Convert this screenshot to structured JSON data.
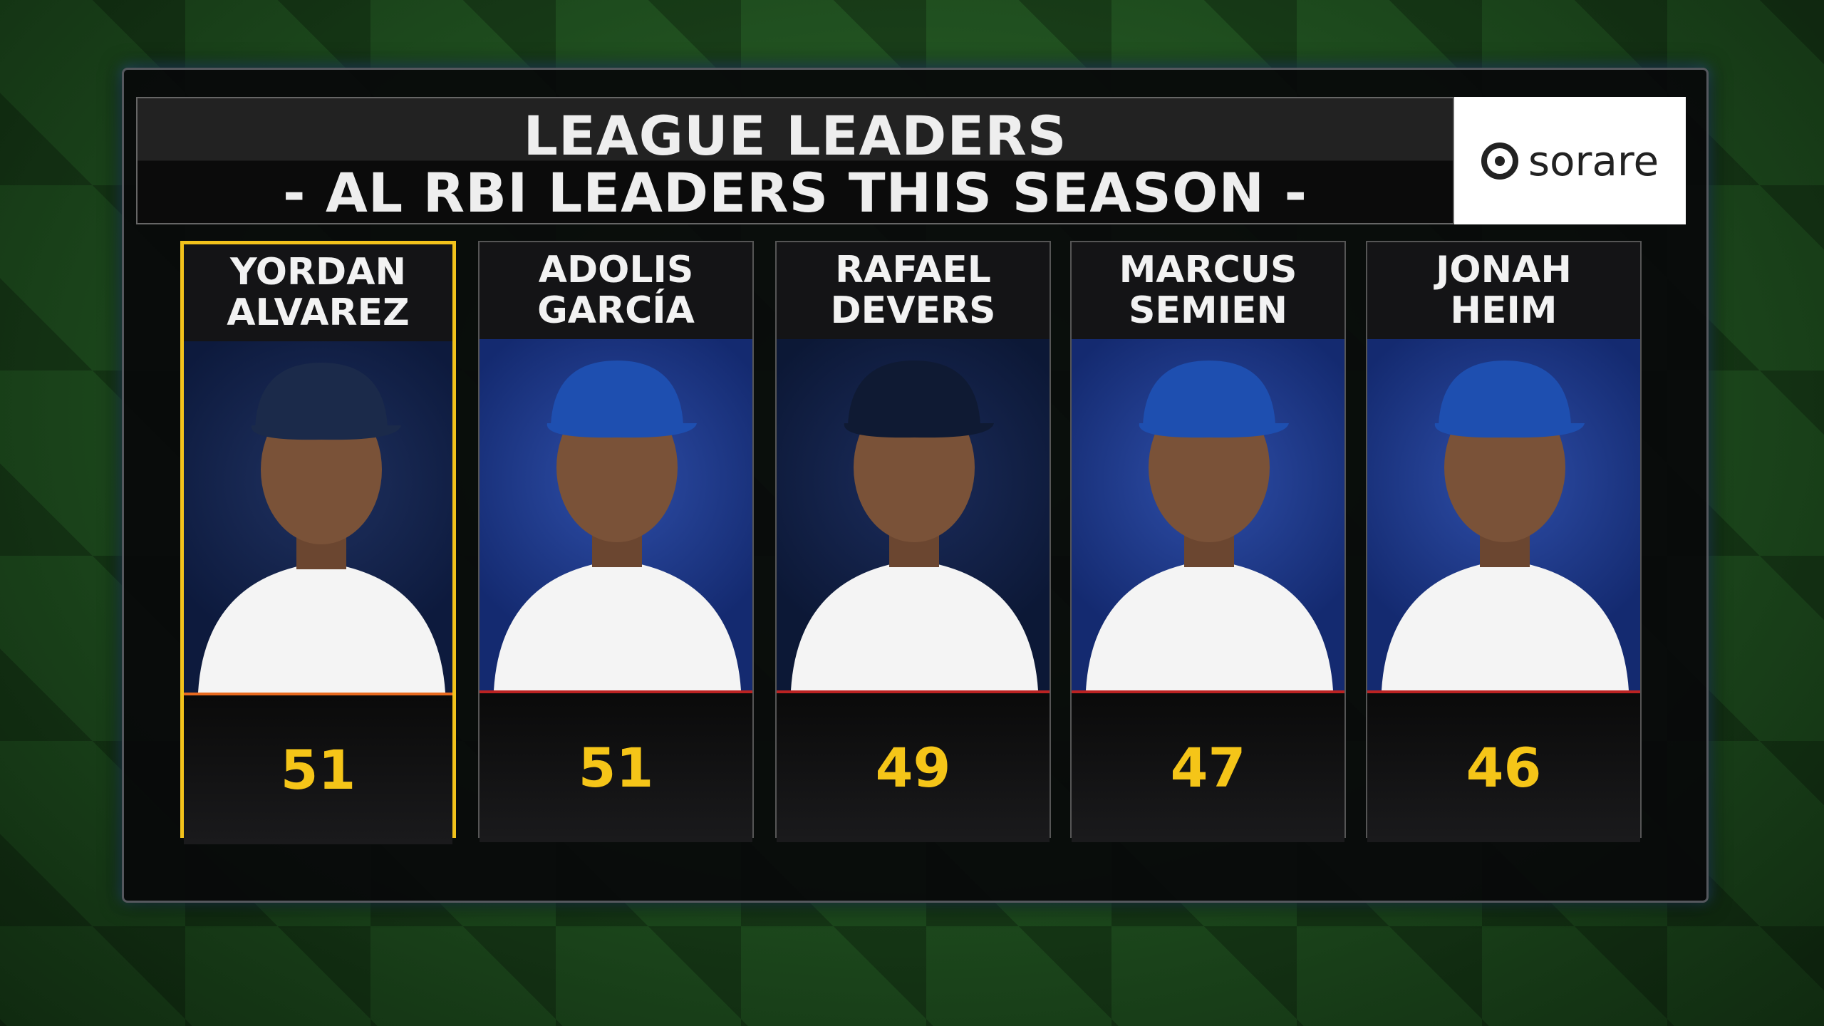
{
  "header": {
    "title": "LEAGUE LEADERS",
    "subtitle": "- AL RBI LEADERS THIS SEASON -"
  },
  "sponsor": "sorare",
  "players": [
    {
      "first": "YORDAN",
      "last": "ALVAREZ",
      "value": 51
    },
    {
      "first": "ADOLIS",
      "last": "GARCÍA",
      "value": 51
    },
    {
      "first": "RAFAEL",
      "last": "DEVERS",
      "value": 49
    },
    {
      "first": "MARCUS",
      "last": "SEMIEN",
      "value": 47
    },
    {
      "first": "JONAH",
      "last": "HEIM",
      "value": 46
    }
  ]
}
